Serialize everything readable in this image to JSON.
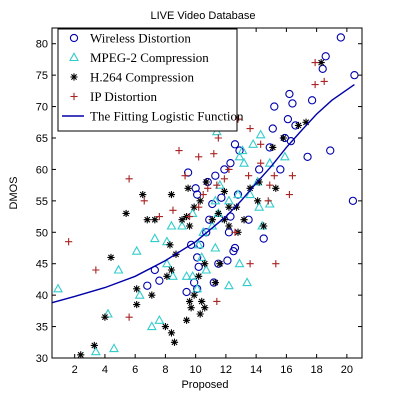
{
  "chart_data": {
    "type": "scatter",
    "title": "LIVE Video Database",
    "xlabel": "Proposed",
    "ylabel": "DMOS",
    "xlim": [
      0.5,
      21
    ],
    "ylim": [
      30,
      82.5
    ],
    "xticks": [
      2,
      4,
      6,
      8,
      10,
      12,
      14,
      16,
      18,
      20
    ],
    "yticks": [
      30,
      35,
      40,
      45,
      50,
      55,
      60,
      65,
      70,
      75,
      80
    ],
    "grid": false,
    "legend_position": "top-left",
    "series": [
      {
        "name": "Wireless Distortion",
        "marker": "circle",
        "color": "#0000aa",
        "points": [
          [
            19.6,
            81
          ],
          [
            18.6,
            78
          ],
          [
            18.4,
            76
          ],
          [
            20.5,
            75
          ],
          [
            16.2,
            72
          ],
          [
            15.2,
            70
          ],
          [
            16.4,
            70.5
          ],
          [
            17.7,
            71
          ],
          [
            16.1,
            68
          ],
          [
            16.6,
            67
          ],
          [
            15.1,
            66.5
          ],
          [
            15.9,
            65
          ],
          [
            16.3,
            64.5
          ],
          [
            17.4,
            62
          ],
          [
            14.9,
            63.5
          ],
          [
            12.6,
            64
          ],
          [
            12.9,
            63
          ],
          [
            12.3,
            61
          ],
          [
            14.2,
            60
          ],
          [
            11.3,
            59
          ],
          [
            11.9,
            60
          ],
          [
            10.8,
            58
          ],
          [
            10,
            57
          ],
          [
            9.5,
            59.5
          ],
          [
            10.1,
            56
          ],
          [
            11.7,
            55.5
          ],
          [
            12.8,
            56
          ],
          [
            11.1,
            54.5
          ],
          [
            10.9,
            52
          ],
          [
            10.7,
            50
          ],
          [
            10.3,
            48
          ],
          [
            12.3,
            52.5
          ],
          [
            12.2,
            50
          ],
          [
            13.5,
            52
          ],
          [
            12.6,
            47.5
          ],
          [
            12.1,
            45.5
          ],
          [
            12.5,
            47
          ],
          [
            11.5,
            45
          ],
          [
            11.2,
            42
          ],
          [
            9.9,
            42
          ],
          [
            10.1,
            41
          ],
          [
            9.4,
            40.5
          ],
          [
            10.2,
            44.5
          ],
          [
            9.7,
            48
          ],
          [
            10.1,
            46
          ],
          [
            7.6,
            42.3
          ],
          [
            7.3,
            44
          ],
          [
            6.8,
            41.5
          ],
          [
            14.5,
            49
          ],
          [
            18.9,
            63
          ],
          [
            20.4,
            55
          ],
          [
            15.6,
            60
          ]
        ]
      },
      {
        "name": "MPEG-2 Compression",
        "marker": "triangle",
        "color": "#33cccc",
        "points": [
          [
            0.9,
            41
          ],
          [
            3.4,
            31
          ],
          [
            4.6,
            31.5
          ],
          [
            4.2,
            37
          ],
          [
            4.9,
            44
          ],
          [
            6.3,
            40
          ],
          [
            7.1,
            35
          ],
          [
            7.6,
            36
          ],
          [
            6.1,
            47
          ],
          [
            7.3,
            49
          ],
          [
            8.4,
            51
          ],
          [
            8.1,
            48.5
          ],
          [
            8.1,
            45
          ],
          [
            8.5,
            43
          ],
          [
            9.4,
            43
          ],
          [
            9.1,
            51
          ],
          [
            9.8,
            53
          ],
          [
            10.5,
            50
          ],
          [
            10.2,
            48
          ],
          [
            10.4,
            46
          ],
          [
            9.8,
            43
          ],
          [
            10.1,
            41
          ],
          [
            10.7,
            44
          ],
          [
            11.1,
            51
          ],
          [
            11.3,
            47.5
          ],
          [
            11.5,
            53
          ],
          [
            11.3,
            55
          ],
          [
            11.6,
            57.5
          ],
          [
            12.2,
            55
          ],
          [
            12.8,
            56
          ],
          [
            12.9,
            62
          ],
          [
            13.1,
            63
          ],
          [
            13.2,
            61
          ],
          [
            13.6,
            56
          ],
          [
            14.2,
            54
          ],
          [
            14.4,
            51
          ],
          [
            14.1,
            58
          ],
          [
            14.9,
            54.5
          ],
          [
            14.3,
            65.5
          ],
          [
            14.9,
            61
          ],
          [
            11.4,
            66
          ],
          [
            12.9,
            45
          ],
          [
            13.4,
            42
          ],
          [
            15.9,
            62
          ],
          [
            13.8,
            64
          ],
          [
            12.2,
            41.5
          ]
        ]
      },
      {
        "name": "H.264 Compression",
        "marker": "star",
        "color": "#000000",
        "points": [
          [
            2.4,
            30.5
          ],
          [
            3.3,
            32
          ],
          [
            4,
            36.5
          ],
          [
            4.4,
            46
          ],
          [
            6.1,
            41
          ],
          [
            5.4,
            53
          ],
          [
            6.5,
            56
          ],
          [
            6.8,
            52
          ],
          [
            7.3,
            52
          ],
          [
            6.1,
            38.5
          ],
          [
            7.1,
            40
          ],
          [
            8,
            35
          ],
          [
            8.4,
            34
          ],
          [
            8.1,
            43
          ],
          [
            8.7,
            46.5
          ],
          [
            8.3,
            48
          ],
          [
            8.4,
            44
          ],
          [
            9.1,
            52
          ],
          [
            9.4,
            52.5
          ],
          [
            8.4,
            56
          ],
          [
            9.5,
            57
          ],
          [
            9.9,
            54
          ],
          [
            9.6,
            51
          ],
          [
            10.3,
            55
          ],
          [
            10.7,
            58
          ],
          [
            11.1,
            52
          ],
          [
            11.9,
            52
          ],
          [
            12.2,
            54
          ],
          [
            12.2,
            51
          ],
          [
            11.6,
            45
          ],
          [
            11.3,
            42
          ],
          [
            10.6,
            45
          ],
          [
            10.2,
            43
          ],
          [
            9.9,
            40
          ],
          [
            9.4,
            36
          ],
          [
            9.6,
            39
          ],
          [
            9.7,
            38
          ],
          [
            10.3,
            37
          ],
          [
            10.6,
            38
          ],
          [
            11.5,
            53
          ],
          [
            11.9,
            56.5
          ],
          [
            12.7,
            54
          ],
          [
            13.2,
            52
          ],
          [
            13.6,
            57
          ],
          [
            14.5,
            51
          ],
          [
            15.1,
            63.5
          ],
          [
            15.8,
            65
          ],
          [
            14.2,
            58
          ],
          [
            15.3,
            57
          ],
          [
            16.8,
            67
          ],
          [
            17.3,
            67.5
          ],
          [
            18.3,
            77
          ],
          [
            14.1,
            55
          ],
          [
            12.8,
            50
          ],
          [
            8.6,
            32.5
          ],
          [
            10.4,
            39
          ]
        ]
      },
      {
        "name": "IP Distortion",
        "marker": "plus",
        "color": "#aa2222",
        "points": [
          [
            1.6,
            48.5
          ],
          [
            3.4,
            44
          ],
          [
            5.6,
            58.5
          ],
          [
            6.6,
            55
          ],
          [
            5.6,
            36.5
          ],
          [
            7.6,
            52.5
          ],
          [
            8.5,
            53.5
          ],
          [
            8.9,
            63
          ],
          [
            9.3,
            59
          ],
          [
            10.2,
            62
          ],
          [
            11.2,
            62.5
          ],
          [
            11.5,
            65
          ],
          [
            12.8,
            68
          ],
          [
            13.6,
            66.5
          ],
          [
            14.3,
            64
          ],
          [
            15.2,
            59
          ],
          [
            14.9,
            57.5
          ],
          [
            13.5,
            59
          ],
          [
            12.2,
            60
          ],
          [
            11.9,
            58.5
          ],
          [
            11.4,
            57.5
          ],
          [
            10.8,
            57
          ],
          [
            10.5,
            56
          ],
          [
            10.2,
            54
          ],
          [
            9.6,
            52.5
          ],
          [
            12.6,
            50
          ],
          [
            14.3,
            61
          ],
          [
            11.4,
            39
          ],
          [
            15.3,
            45
          ],
          [
            16.4,
            59
          ],
          [
            17.9,
            73.5
          ],
          [
            18.5,
            74
          ],
          [
            17.9,
            77
          ],
          [
            12.5,
            70
          ],
          [
            13.6,
            45
          ],
          [
            16.2,
            56
          ],
          [
            14.8,
            55
          ]
        ]
      },
      {
        "name": "The Fitting Logistic Function",
        "type": "line",
        "color": "#0000aa",
        "points": [
          [
            0.5,
            38.8
          ],
          [
            2,
            39.8
          ],
          [
            4,
            41.2
          ],
          [
            6,
            43
          ],
          [
            8,
            45.5
          ],
          [
            10,
            48.5
          ],
          [
            12,
            52.5
          ],
          [
            13,
            55
          ],
          [
            14,
            57.8
          ],
          [
            15,
            60.5
          ],
          [
            16,
            63.5
          ],
          [
            17,
            66.2
          ],
          [
            18,
            68.8
          ],
          [
            19,
            71
          ],
          [
            20.5,
            73.5
          ]
        ]
      }
    ]
  }
}
